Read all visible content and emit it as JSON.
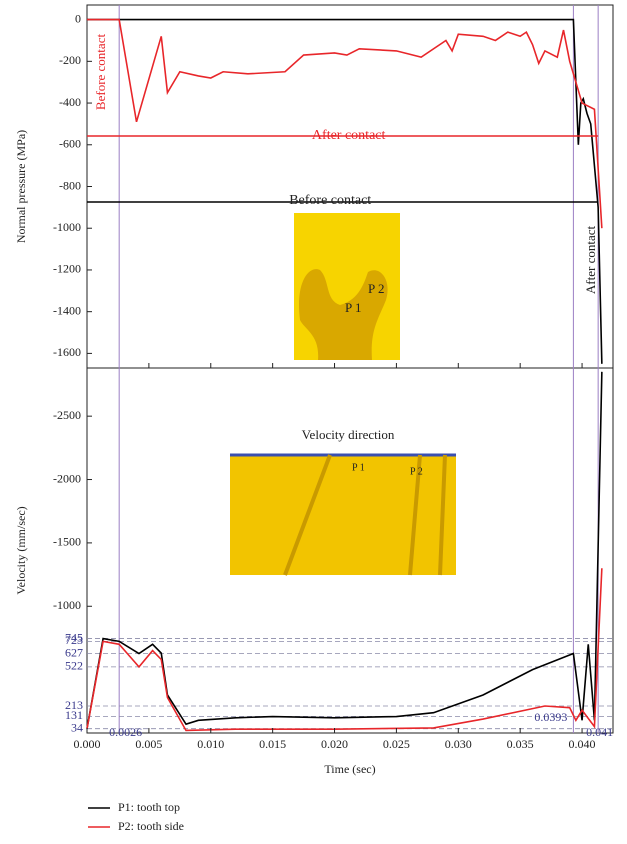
{
  "chart_data": [
    {
      "type": "line",
      "y_label": "Normal pressure (MPa)",
      "xlim": [
        0,
        0.0425
      ],
      "ylim": [
        -1670,
        70
      ],
      "yticks": [
        0,
        -200,
        -400,
        -600,
        -800,
        -1000,
        -1200,
        -1400,
        -1600
      ],
      "annotations": [
        "Before contact",
        "After contact",
        "Before contact",
        "After contact"
      ],
      "inset_labels": [
        "P 1",
        "P 2"
      ],
      "series": [
        {
          "color": "#000000",
          "x": [
            0,
            0.0393,
            0.0397,
            0.0399,
            0.0401,
            0.0404,
            0.0407,
            0.041,
            0.0413,
            0.0416
          ],
          "values": [
            0,
            0,
            -600,
            -400,
            -380,
            -450,
            -500,
            -700,
            -900,
            -1650
          ]
        },
        {
          "color": "#e8262a",
          "x": [
            0,
            0.0026,
            0.004,
            0.006,
            0.0065,
            0.0075,
            0.009,
            0.01,
            0.011,
            0.013,
            0.016,
            0.0175,
            0.02,
            0.021,
            0.022,
            0.025,
            0.027,
            0.029,
            0.0295,
            0.03,
            0.032,
            0.033,
            0.034,
            0.035,
            0.0355,
            0.036,
            0.0365,
            0.037,
            0.038,
            0.0385,
            0.039,
            0.0395,
            0.04,
            0.041,
            0.0416
          ],
          "values": [
            0,
            0,
            -490,
            -80,
            -350,
            -250,
            -270,
            -280,
            -250,
            -260,
            -250,
            -170,
            -160,
            -170,
            -140,
            -150,
            -180,
            -100,
            -150,
            -70,
            -80,
            -100,
            -60,
            -80,
            -60,
            -120,
            -210,
            -150,
            -180,
            -50,
            -200,
            -300,
            -400,
            -430,
            -1000
          ]
        }
      ]
    },
    {
      "type": "line",
      "x_label": "Time (sec)",
      "y_label": "Velocity (mm/sec)",
      "inset_title": "Velocity direction",
      "inset_labels": [
        "P 1",
        "P 2"
      ],
      "xlim": [
        0,
        0.0425
      ],
      "ylim": [
        0,
        2880
      ],
      "xticks": [
        {
          "value": 0,
          "label": "0.000"
        },
        0.005,
        {
          "value": 0.01,
          "label": "0.010"
        },
        0.015,
        {
          "value": 0.02,
          "label": "0.020"
        },
        0.025,
        {
          "value": 0.03,
          "label": "0.030"
        },
        0.035,
        {
          "value": 0.04,
          "label": "0.040"
        }
      ],
      "yticks": [
        {
          "value": 1000,
          "label": "-1000"
        },
        {
          "value": 1500,
          "label": "-1500"
        },
        {
          "value": 2000,
          "label": "-2000"
        },
        {
          "value": 2500,
          "label": "-2500"
        }
      ],
      "marked_levels": [
        745,
        723,
        627,
        522,
        213,
        131,
        34
      ],
      "vlines": [
        {
          "value": 0.0026,
          "label": "0.0026"
        },
        {
          "value": 0.0393,
          "label": "0.0393"
        },
        {
          "value": 0.0413,
          "label": "0.041"
        }
      ],
      "series": [
        {
          "name": "P1: tooth top",
          "color": "#000000",
          "x": [
            0,
            0.0013,
            0.0026,
            0.0042,
            0.0053,
            0.006,
            0.0065,
            0.008,
            0.009,
            0.012,
            0.015,
            0.02,
            0.025,
            0.028,
            0.032,
            0.036,
            0.0393,
            0.04,
            0.0405,
            0.041,
            0.0416
          ],
          "values": [
            34,
            745,
            723,
            627,
            700,
            630,
            300,
            70,
            100,
            120,
            130,
            120,
            130,
            160,
            300,
            500,
            627,
            100,
            700,
            100,
            2850
          ]
        },
        {
          "name": "P2: tooth side",
          "color": "#e8262a",
          "x": [
            0,
            0.0013,
            0.0026,
            0.0042,
            0.0053,
            0.006,
            0.0065,
            0.008,
            0.012,
            0.02,
            0.028,
            0.032,
            0.037,
            0.039,
            0.0395,
            0.04,
            0.041,
            0.0416
          ],
          "values": [
            34,
            723,
            700,
            522,
            650,
            580,
            280,
            20,
            30,
            30,
            40,
            110,
            213,
            200,
            100,
            180,
            50,
            1300
          ]
        }
      ]
    }
  ]
}
